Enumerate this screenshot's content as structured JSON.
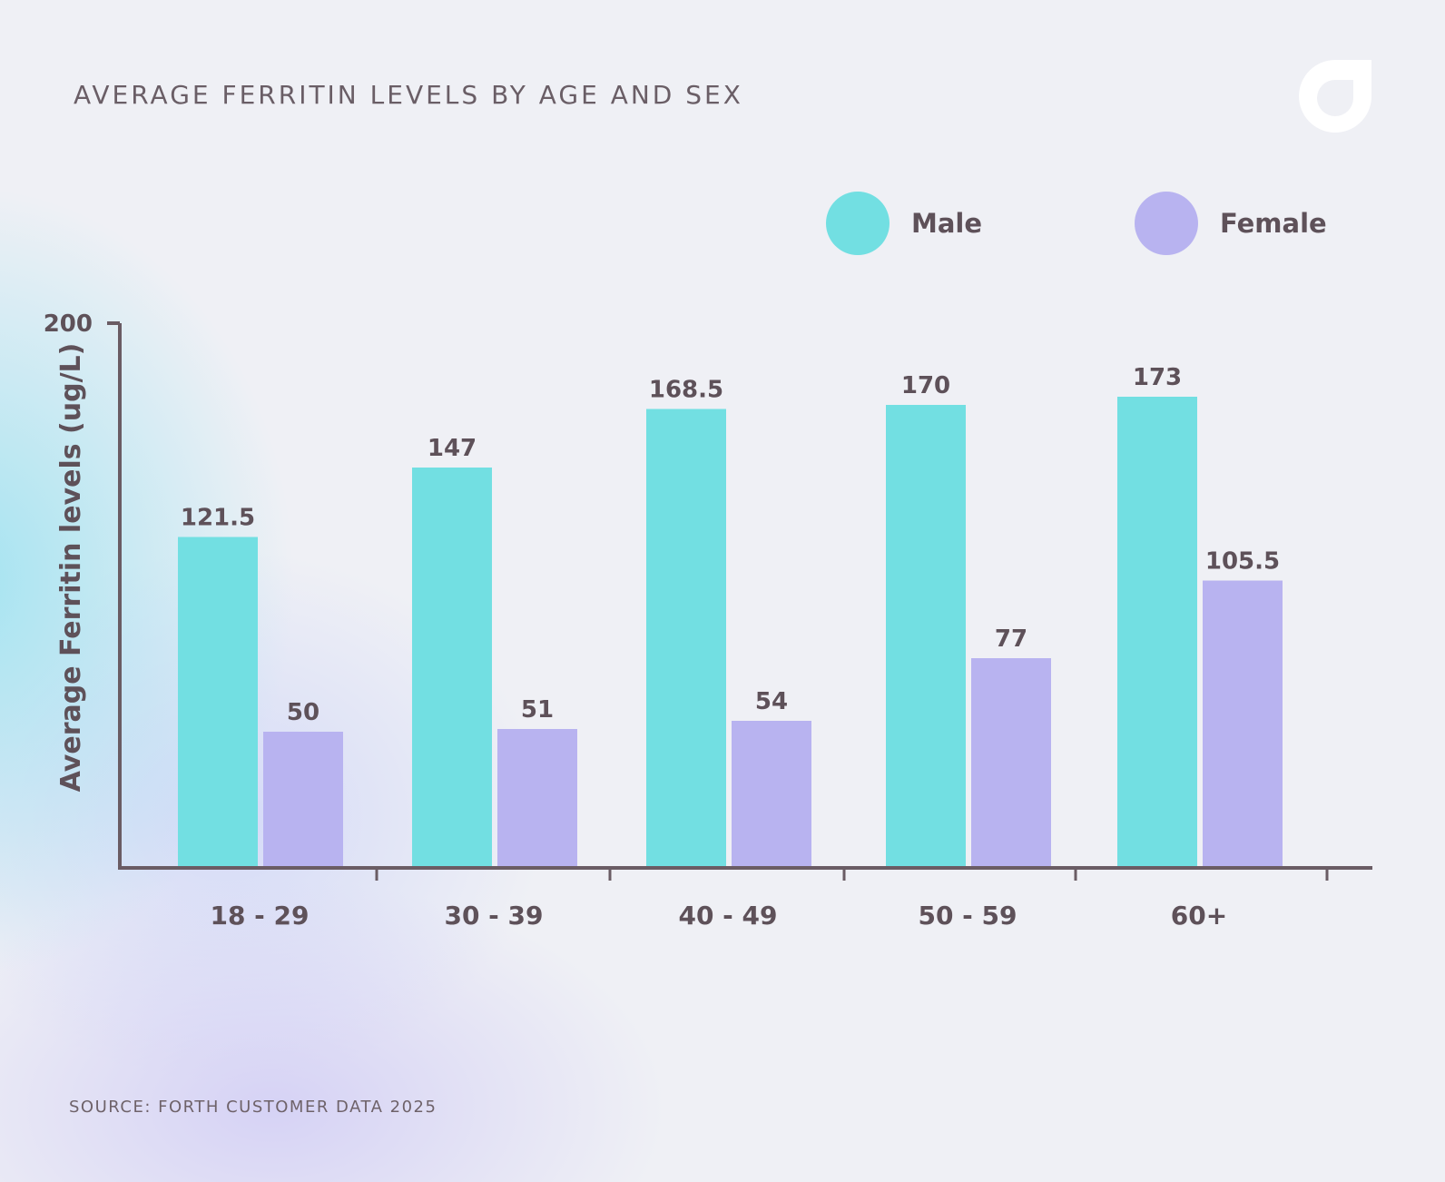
{
  "title": "AVERAGE FERRITIN LEVELS BY AGE AND SEX",
  "source": "SOURCE: FORTH CUSTOMER DATA 2025",
  "logo_icon": "forth-logo-icon",
  "colors": {
    "male": "#72dfe2",
    "female": "#b8b3f0",
    "axis": "#6a5c64",
    "text": "#5e5159"
  },
  "legend": [
    {
      "label": "Male",
      "color": "#72dfe2"
    },
    {
      "label": "Female",
      "color": "#b8b3f0"
    }
  ],
  "chart_data": {
    "type": "bar",
    "categories": [
      "18 - 29",
      "30 - 39",
      "40 - 49",
      "50 - 59",
      "60+"
    ],
    "series": [
      {
        "name": "Male",
        "values": [
          121.5,
          147,
          168.5,
          170,
          173
        ],
        "color": "#72dfe2"
      },
      {
        "name": "Female",
        "values": [
          50,
          51,
          54,
          77,
          105.5
        ],
        "color": "#b8b3f0"
      }
    ],
    "value_labels": [
      [
        "121.5",
        "147",
        "168.5",
        "170",
        "173"
      ],
      [
        "50",
        "51",
        "54",
        "77",
        "105.5"
      ]
    ],
    "ylabel": "Average Ferritin levels (ug/L)",
    "ylim": [
      0,
      200
    ],
    "yticks": [
      200
    ],
    "ytick_labels": [
      "200"
    ],
    "grid": false,
    "legend_position": "top-right"
  }
}
